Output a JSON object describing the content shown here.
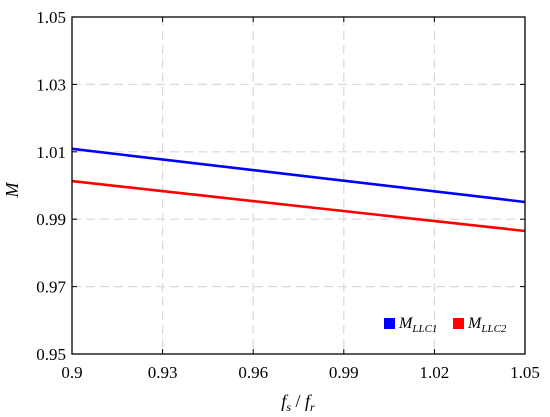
{
  "chart_data": {
    "type": "line",
    "xlabel": {
      "main": "f",
      "main_sub": "s",
      "sep": " / ",
      "den": "f",
      "den_sub": "r"
    },
    "ylabel": "M",
    "xlim": [
      0.9,
      1.05
    ],
    "ylim": [
      0.95,
      1.05
    ],
    "xticks": [
      0.9,
      0.93,
      0.96,
      0.99,
      1.02,
      1.05
    ],
    "xtick_labels": [
      "0.9",
      "0.93",
      "0.96",
      "0.99",
      "1.02",
      "1.05"
    ],
    "yticks": [
      0.95,
      0.97,
      0.99,
      1.01,
      1.03,
      1.05
    ],
    "ytick_labels": [
      "0.95",
      "0.97",
      "0.99",
      "1.01",
      "1.03",
      "1.05"
    ],
    "grid": true,
    "legend_position": "bottom-right",
    "series": [
      {
        "name_main": "M",
        "name_sub": "LLC1",
        "color": "#0000ff",
        "x": [
          0.9,
          1.05
        ],
        "y": [
          1.0109,
          0.9951
        ]
      },
      {
        "name_main": "M",
        "name_sub": "LLC2",
        "color": "#ff0000",
        "x": [
          0.9,
          1.05
        ],
        "y": [
          1.0013,
          0.9865
        ]
      }
    ]
  }
}
